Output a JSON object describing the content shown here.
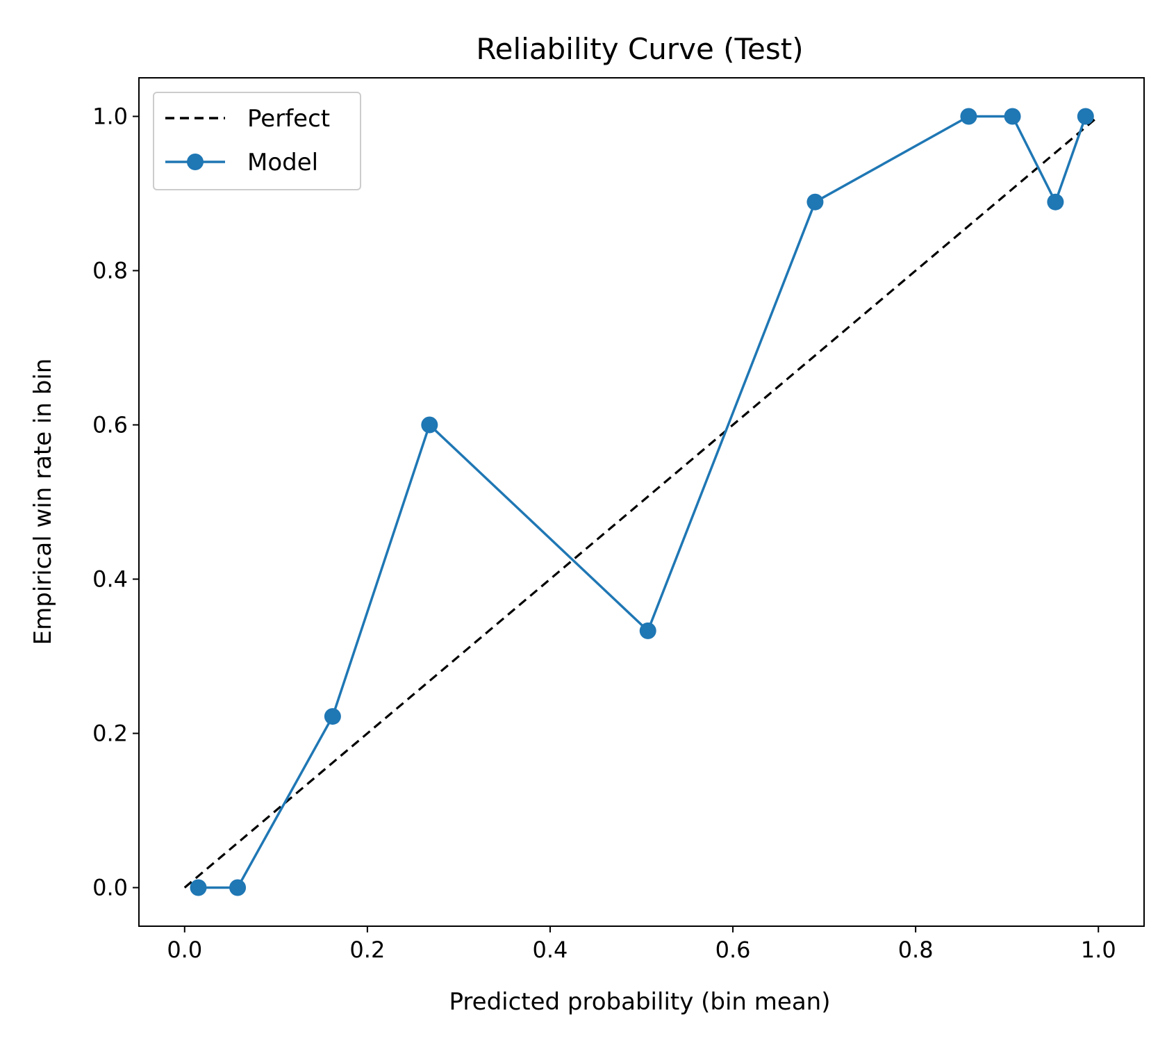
{
  "chart_data": {
    "type": "line",
    "title": "Reliability Curve (Test)",
    "xlabel": "Predicted probability (bin mean)",
    "ylabel": "Empirical win rate in bin",
    "xlim": [
      -0.05,
      1.05
    ],
    "ylim": [
      -0.05,
      1.05
    ],
    "xticks": [
      0.0,
      0.2,
      0.4,
      0.6,
      0.8,
      1.0
    ],
    "xtick_labels": [
      "0.0",
      "0.2",
      "0.4",
      "0.6",
      "0.8",
      "1.0"
    ],
    "yticks": [
      0.0,
      0.2,
      0.4,
      0.6,
      0.8,
      1.0
    ],
    "ytick_labels": [
      "0.0",
      "0.2",
      "0.4",
      "0.6",
      "0.8",
      "1.0"
    ],
    "grid": false,
    "legend_position": "top-left",
    "series": [
      {
        "name": "Perfect",
        "style": "dashed",
        "marker": "none",
        "color": "#000000",
        "x": [
          0.0,
          1.0
        ],
        "y": [
          0.0,
          1.0
        ]
      },
      {
        "name": "Model",
        "style": "solid",
        "marker": "circle",
        "color": "#1f77b4",
        "x": [
          0.015,
          0.058,
          0.162,
          0.268,
          0.507,
          0.69,
          0.858,
          0.906,
          0.953,
          0.986
        ],
        "y": [
          0.0,
          0.0,
          0.222,
          0.6,
          0.333,
          0.889,
          1.0,
          1.0,
          0.889,
          1.0
        ]
      }
    ]
  }
}
